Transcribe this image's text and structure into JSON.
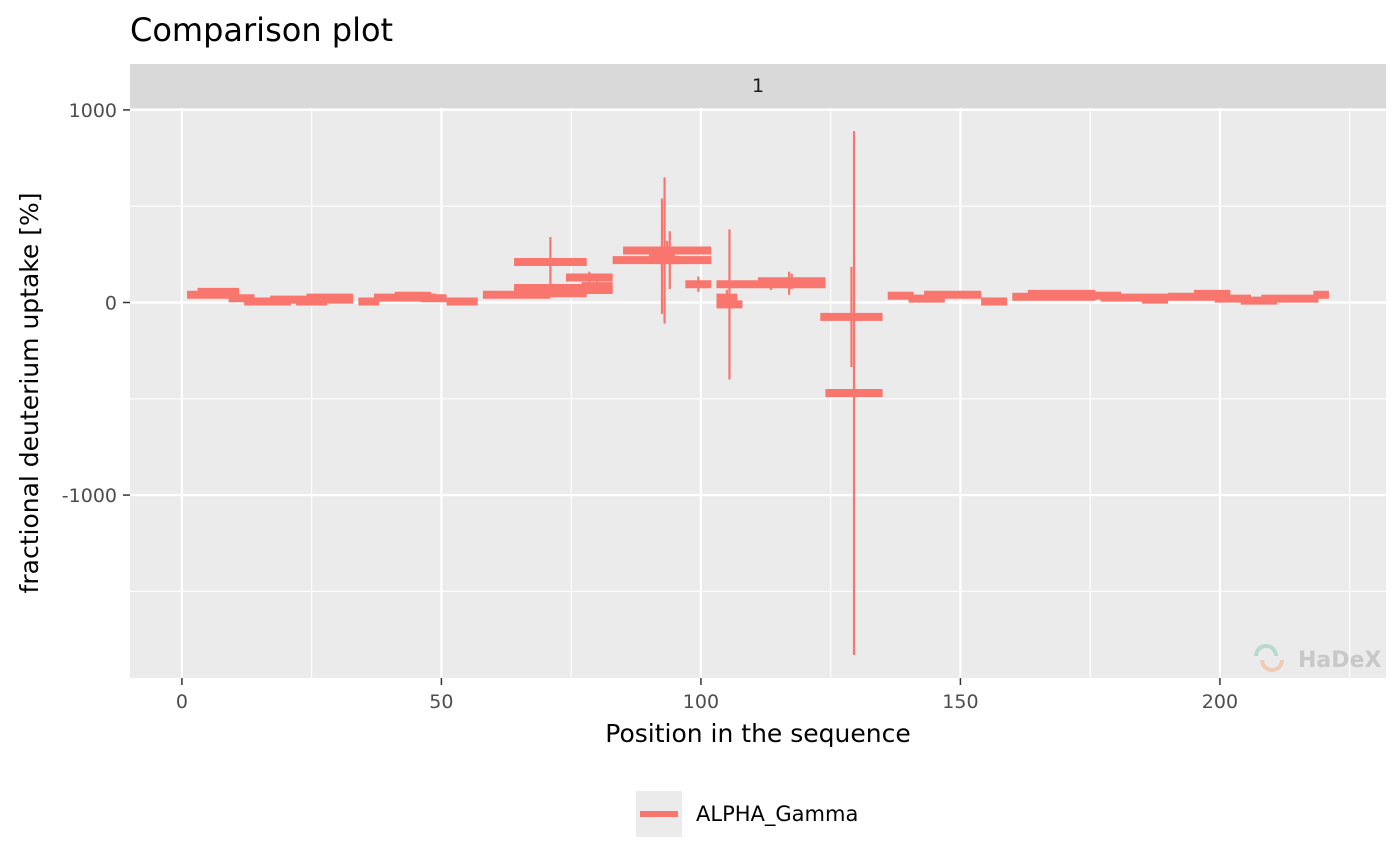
{
  "chart_data": {
    "type": "segment-errorbar",
    "title": "Comparison plot",
    "facet_label": "1",
    "xlabel": "Position in the sequence",
    "ylabel": "fractional deuterium uptake [%]",
    "xlim": [
      -10,
      232
    ],
    "ylim": [
      -1950,
      1010
    ],
    "x_ticks": [
      0,
      50,
      100,
      150,
      200
    ],
    "y_ticks": [
      -1000,
      0,
      1000
    ],
    "y_tick_labels": [
      "-1000",
      "0",
      "1000"
    ],
    "grid": true,
    "legend_position": "bottom",
    "watermark": "HaDeX",
    "series": [
      {
        "name": "ALPHA_Gamma",
        "color": "#F8766D",
        "segments": [
          {
            "start": 1,
            "end": 11,
            "value": 40,
            "err": 15
          },
          {
            "start": 3,
            "end": 11,
            "value": 55,
            "err": 15
          },
          {
            "start": 9,
            "end": 14,
            "value": 22,
            "err": 10
          },
          {
            "start": 12,
            "end": 21,
            "value": 5,
            "err": 10
          },
          {
            "start": 17,
            "end": 25,
            "value": 15,
            "err": 10
          },
          {
            "start": 22,
            "end": 28,
            "value": 5,
            "err": 10
          },
          {
            "start": 24,
            "end": 33,
            "value": 25,
            "err": 10
          },
          {
            "start": 25,
            "end": 33,
            "value": 15,
            "err": 10
          },
          {
            "start": 34,
            "end": 38,
            "value": 5,
            "err": 10
          },
          {
            "start": 37,
            "end": 49,
            "value": 25,
            "err": 10
          },
          {
            "start": 41,
            "end": 48,
            "value": 35,
            "err": 10
          },
          {
            "start": 46,
            "end": 51,
            "value": 22,
            "err": 10
          },
          {
            "start": 51,
            "end": 57,
            "value": 5,
            "err": 10
          },
          {
            "start": 58,
            "end": 71,
            "value": 40,
            "err": 15
          },
          {
            "start": 64,
            "end": 72,
            "value": 55,
            "err": 15
          },
          {
            "start": 64,
            "end": 78,
            "value": 75,
            "err": 20
          },
          {
            "start": 64,
            "end": 78,
            "value": 210,
            "err": 130
          },
          {
            "start": 68,
            "end": 78,
            "value": 48,
            "err": 20
          },
          {
            "start": 74,
            "end": 83,
            "value": 130,
            "err": 30
          },
          {
            "start": 75,
            "end": 83,
            "value": 65,
            "err": 20
          },
          {
            "start": 77,
            "end": 83,
            "value": 85,
            "err": 40
          },
          {
            "start": 83,
            "end": 102,
            "value": 220,
            "err": 60
          },
          {
            "start": 85,
            "end": 102,
            "value": 270,
            "err": 50
          },
          {
            "start": 90,
            "end": 95,
            "value": 240,
            "err": 300
          },
          {
            "start": 91,
            "end": 95,
            "value": 270,
            "err": 380
          },
          {
            "start": 92,
            "end": 96,
            "value": 220,
            "err": 150
          },
          {
            "start": 97,
            "end": 102,
            "value": 95,
            "err": 40
          },
          {
            "start": 103,
            "end": 107,
            "value": 25,
            "err": 40
          },
          {
            "start": 103,
            "end": 108,
            "value": -10,
            "err": 390
          },
          {
            "start": 103,
            "end": 124,
            "value": 95,
            "err": 30
          },
          {
            "start": 111,
            "end": 124,
            "value": 110,
            "err": 40
          },
          {
            "start": 112,
            "end": 122,
            "value": 100,
            "err": 60
          },
          {
            "start": 123,
            "end": 135,
            "value": -75,
            "err": 260
          },
          {
            "start": 124,
            "end": 135,
            "value": -470,
            "err": 1360
          },
          {
            "start": 136,
            "end": 141,
            "value": 35,
            "err": 15
          },
          {
            "start": 140,
            "end": 147,
            "value": 20,
            "err": 15
          },
          {
            "start": 143,
            "end": 154,
            "value": 40,
            "err": 15
          },
          {
            "start": 154,
            "end": 159,
            "value": 5,
            "err": 10
          },
          {
            "start": 160,
            "end": 176,
            "value": 30,
            "err": 15
          },
          {
            "start": 163,
            "end": 176,
            "value": 45,
            "err": 15
          },
          {
            "start": 170,
            "end": 181,
            "value": 35,
            "err": 15
          },
          {
            "start": 177,
            "end": 190,
            "value": 25,
            "err": 15
          },
          {
            "start": 185,
            "end": 190,
            "value": 15,
            "err": 10
          },
          {
            "start": 190,
            "end": 200,
            "value": 30,
            "err": 15
          },
          {
            "start": 195,
            "end": 202,
            "value": 45,
            "err": 15
          },
          {
            "start": 199,
            "end": 206,
            "value": 20,
            "err": 10
          },
          {
            "start": 204,
            "end": 211,
            "value": 10,
            "err": 10
          },
          {
            "start": 208,
            "end": 219,
            "value": 20,
            "err": 10
          },
          {
            "start": 218,
            "end": 221,
            "value": 40,
            "err": 10
          }
        ]
      }
    ]
  }
}
